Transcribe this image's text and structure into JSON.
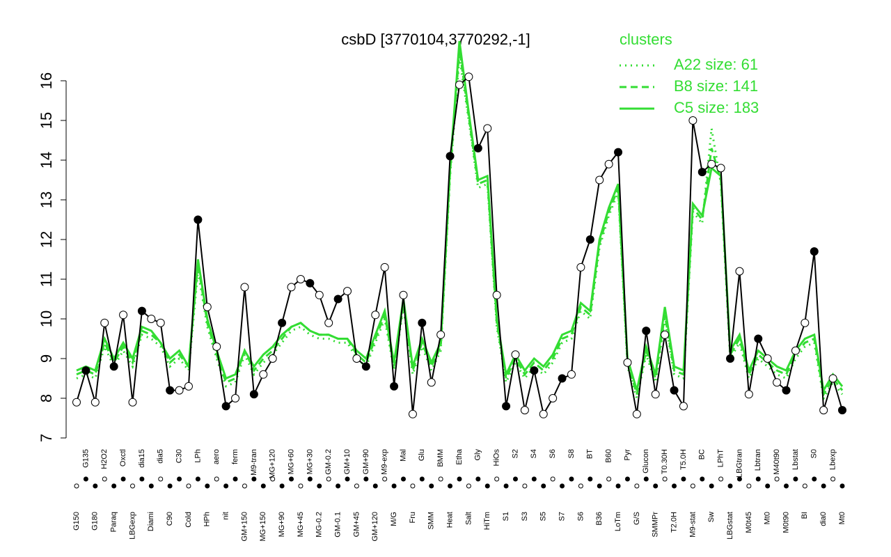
{
  "chart_data": {
    "type": "line",
    "title": "csbD [3770104,3770292,-1]",
    "legend_title": "clusters",
    "legend_position": "top-right",
    "categories": [
      "G150",
      "G135",
      "G180",
      "H2O2",
      "Paraq",
      "Oxctl",
      "LBGexp",
      "dia15",
      "Diami",
      "dia5",
      "C90",
      "C30",
      "Cold",
      "LPh",
      "HPh",
      "aero",
      "nit",
      "ferm",
      "GM+150",
      "M9-tran",
      "MG+150",
      "MG+120",
      "MG+90",
      "MG+60",
      "MG+45",
      "MG+30",
      "MG-0.2",
      "GM-0.2",
      "GM-0.1",
      "GM+10",
      "GM+45",
      "GM+90",
      "GM+120",
      "M9-exp",
      "M/G",
      "Mal",
      "Fru",
      "Glu",
      "SMM",
      "BMM",
      "Heat",
      "Etha",
      "Salt",
      "Gly",
      "HiTm",
      "HiOs",
      "S1",
      "S2",
      "S3",
      "S4",
      "S5",
      "S6",
      "S7",
      "S8",
      "S6",
      "BT",
      "B36",
      "B60",
      "LoTm",
      "Pyr",
      "G/S",
      "Glucon",
      "SMMPr",
      "T0.30H",
      "T2.0H",
      "T5.0H",
      "M9-stat",
      "BC",
      "Sw",
      "LPhT",
      "LBGstat",
      "LBGtran",
      "M0t45",
      "Lbtran",
      "Mt0",
      "M40t90",
      "M0t90",
      "Lbstat",
      "BI",
      "S0",
      "dia0",
      "Lbexp",
      "Mt0"
    ],
    "series": [
      {
        "name": "csbD",
        "color": "#000000",
        "style": "points",
        "values": [
          7.9,
          8.7,
          7.9,
          9.9,
          8.8,
          10.1,
          7.9,
          10.2,
          10.0,
          9.9,
          8.2,
          8.2,
          8.3,
          12.5,
          10.3,
          9.3,
          7.8,
          8.0,
          10.8,
          8.1,
          8.6,
          9.0,
          9.9,
          10.8,
          11.0,
          10.9,
          10.6,
          9.9,
          10.5,
          10.7,
          9.0,
          8.8,
          10.1,
          11.3,
          8.3,
          10.6,
          7.6,
          9.9,
          8.4,
          9.6,
          14.1,
          15.9,
          16.1,
          14.3,
          14.8,
          10.6,
          7.8,
          9.1,
          7.7,
          8.7,
          7.6,
          8.0,
          8.5,
          8.6,
          11.3,
          12.0,
          13.5,
          13.9,
          14.2,
          8.9,
          7.6,
          9.7,
          8.1,
          9.6,
          8.2,
          7.8,
          15.0,
          13.7,
          13.9,
          13.8,
          9.0,
          11.2,
          8.1,
          9.5,
          9.0,
          8.4,
          8.2,
          9.2,
          9.9,
          11.7,
          7.7,
          8.5,
          7.7
        ]
      },
      {
        "name": "A22 size: 61",
        "color": "#33dd33",
        "style": "dotted",
        "values": [
          8.5,
          8.6,
          8.5,
          9.3,
          8.8,
          9.2,
          8.8,
          9.6,
          9.5,
          9.3,
          8.8,
          9.0,
          8.7,
          11.2,
          9.8,
          9.0,
          8.3,
          8.4,
          9.1,
          8.6,
          8.9,
          9.1,
          9.4,
          9.7,
          9.8,
          9.6,
          9.5,
          9.5,
          9.4,
          9.4,
          9.0,
          8.8,
          9.4,
          10.0,
          8.7,
          10.3,
          8.6,
          9.3,
          8.7,
          9.2,
          13.6,
          16.6,
          15.0,
          13.3,
          13.4,
          9.8,
          8.4,
          8.9,
          8.5,
          8.8,
          8.6,
          8.9,
          9.4,
          9.5,
          10.2,
          10.0,
          11.8,
          12.6,
          13.2,
          8.8,
          8.0,
          9.1,
          8.4,
          10.0,
          8.6,
          8.5,
          12.7,
          12.4,
          14.8,
          13.4,
          9.0,
          9.4,
          8.5,
          9.0,
          8.8,
          8.6,
          8.5,
          9.0,
          9.3,
          9.4,
          8.0,
          8.4,
          8.1
        ]
      },
      {
        "name": "B8 size: 141",
        "color": "#33dd33",
        "style": "dashed",
        "values": [
          8.6,
          8.7,
          8.6,
          9.4,
          8.9,
          9.3,
          8.9,
          9.7,
          9.6,
          9.4,
          8.9,
          9.1,
          8.8,
          11.4,
          9.9,
          9.1,
          8.4,
          8.5,
          9.2,
          8.7,
          9.0,
          9.2,
          9.5,
          9.8,
          9.9,
          9.7,
          9.6,
          9.6,
          9.5,
          9.5,
          9.1,
          8.9,
          9.5,
          10.1,
          8.8,
          10.4,
          8.7,
          9.4,
          8.8,
          9.3,
          13.7,
          16.8,
          15.1,
          13.4,
          13.5,
          9.9,
          8.5,
          9.0,
          8.6,
          8.9,
          8.7,
          9.0,
          9.5,
          9.6,
          10.3,
          10.1,
          11.9,
          12.7,
          13.3,
          8.9,
          8.1,
          9.2,
          8.5,
          10.1,
          8.7,
          8.6,
          12.8,
          12.5,
          14.3,
          13.5,
          9.1,
          9.5,
          8.6,
          9.1,
          8.9,
          8.7,
          8.6,
          9.1,
          9.4,
          9.5,
          8.1,
          8.5,
          8.2
        ]
      },
      {
        "name": "C5 size: 183",
        "color": "#33dd33",
        "style": "solid",
        "values": [
          8.7,
          8.8,
          8.7,
          9.5,
          9.0,
          9.4,
          9.0,
          9.8,
          9.7,
          9.4,
          9.0,
          9.2,
          8.8,
          11.5,
          10.0,
          9.2,
          8.5,
          8.6,
          9.2,
          8.8,
          9.1,
          9.3,
          9.6,
          9.8,
          9.9,
          9.7,
          9.6,
          9.6,
          9.5,
          9.5,
          9.2,
          9.0,
          9.6,
          10.2,
          8.9,
          10.5,
          8.8,
          9.5,
          8.9,
          9.4,
          13.8,
          17.0,
          15.2,
          13.5,
          13.6,
          10.0,
          8.6,
          9.1,
          8.7,
          9.0,
          8.8,
          9.1,
          9.6,
          9.7,
          10.4,
          10.2,
          12.0,
          12.8,
          13.4,
          9.0,
          8.2,
          9.3,
          8.6,
          10.3,
          8.8,
          8.7,
          12.9,
          12.6,
          13.8,
          13.6,
          9.2,
          9.6,
          8.7,
          9.2,
          9.0,
          8.8,
          8.7,
          9.2,
          9.5,
          9.6,
          8.2,
          8.6,
          8.3
        ]
      }
    ],
    "ylim": [
      7,
      16
    ],
    "yticks": [
      7,
      8,
      9,
      10,
      11,
      12,
      13,
      14,
      15,
      16
    ]
  }
}
